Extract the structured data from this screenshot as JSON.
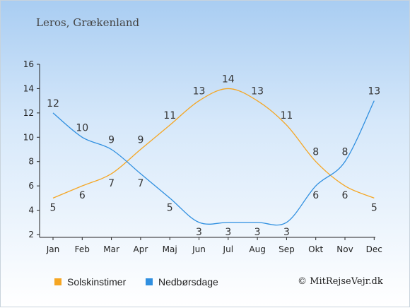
{
  "header": {
    "title": "Leros, Grækenland"
  },
  "credit": "© MitRejseVejr.dk",
  "colors": {
    "sun": "#f5a623",
    "rain": "#2f8fe0"
  },
  "chart_data": {
    "type": "line",
    "categories": [
      "Jan",
      "Feb",
      "Mar",
      "Apr",
      "Maj",
      "Jun",
      "Jul",
      "Aug",
      "Sep",
      "Okt",
      "Nov",
      "Dec"
    ],
    "ylim": [
      2,
      16
    ],
    "yticks": [
      2,
      4,
      6,
      8,
      10,
      12,
      14,
      16
    ],
    "grid": false,
    "legend": "bottom-left",
    "series": [
      {
        "name": "Solskinstimer",
        "color": "#f5a623",
        "values": [
          5,
          6,
          7,
          9,
          11,
          13,
          14,
          13,
          11,
          8,
          6,
          5
        ]
      },
      {
        "name": "Nedbørsdage",
        "color": "#2f8fe0",
        "values": [
          12,
          10,
          9,
          7,
          5,
          3,
          3,
          3,
          3,
          6,
          8,
          13
        ]
      }
    ]
  }
}
